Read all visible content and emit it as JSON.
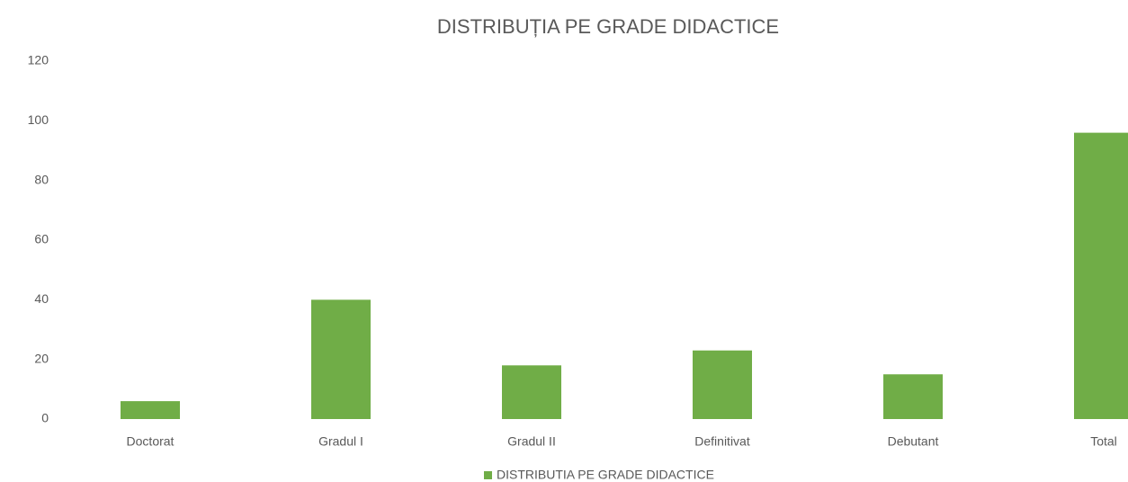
{
  "chart_data": {
    "type": "bar",
    "title": "DISTRIBUȚIA PE GRADE DIDACTICE",
    "categories": [
      "Doctorat",
      "Gradul I",
      "Gradul II",
      "Definitivat",
      "Debutant",
      "Total"
    ],
    "series": [
      {
        "name": "DISTRIBUTIA PE GRADE DIDACTICE",
        "color": "#70ad47",
        "values": [
          6,
          40,
          18,
          23,
          15,
          96
        ]
      }
    ],
    "ylim": [
      0,
      120
    ],
    "yticks": [
      0,
      20,
      40,
      60,
      80,
      100,
      120
    ],
    "grid": false,
    "legend": "bottom"
  }
}
